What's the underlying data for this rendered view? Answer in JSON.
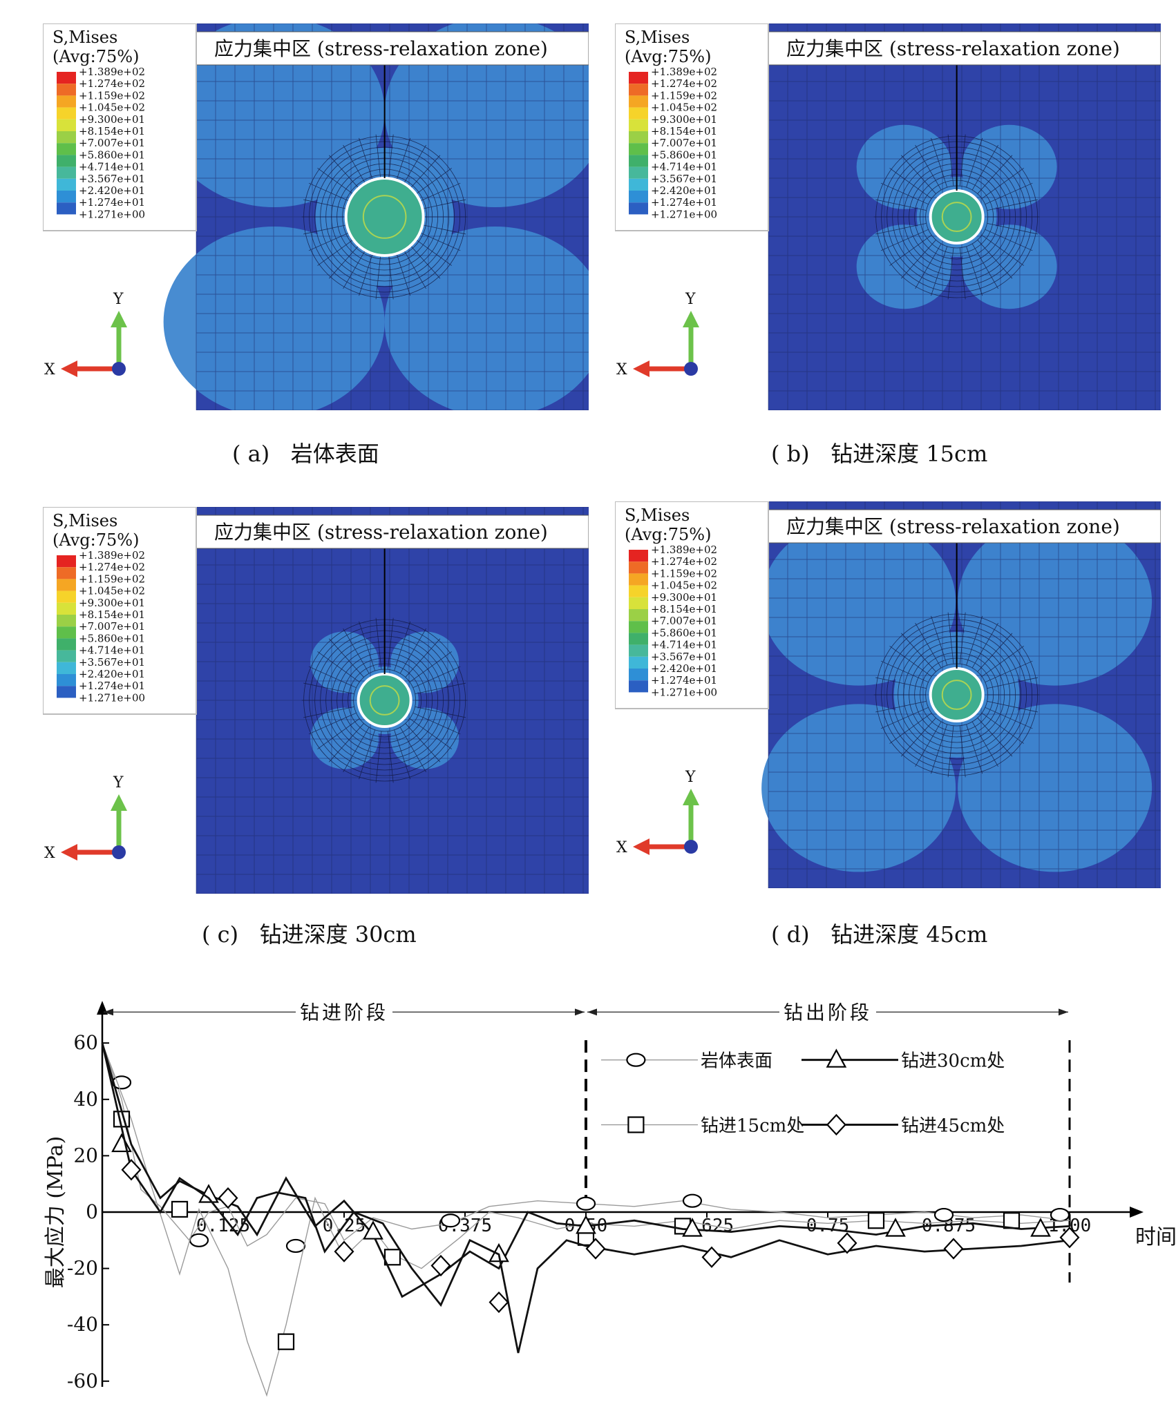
{
  "fem_panels": [
    {
      "id": "a",
      "legend_title": [
        "S,Mises",
        "(Avg:75%)"
      ],
      "legend_values": [
        "+1.389e+02",
        "+1.274e+02",
        "+1.159e+02",
        "+1.045e+02",
        "+9.300e+01",
        "+8.154e+01",
        "+7.007e+01",
        "+5.860e+01",
        "+4.714e+01",
        "+3.567e+01",
        "+2.420e+01",
        "+1.274e+01",
        "+1.271e+00"
      ],
      "banner": "应力集中区  (stress-relaxation zone)",
      "axis_x": "X",
      "axis_y": "Y",
      "caption": "( a)   岩体表面",
      "relaxation_extent": 1.0
    },
    {
      "id": "b",
      "legend_title": [
        "S,Mises",
        "(Avg:75%)"
      ],
      "legend_values": [
        "+1.389e+02",
        "+1.274e+02",
        "+1.159e+02",
        "+1.045e+02",
        "+9.300e+01",
        "+8.154e+01",
        "+7.007e+01",
        "+5.860e+01",
        "+4.714e+01",
        "+3.567e+01",
        "+2.420e+01",
        "+1.274e+01",
        "+1.271e+00"
      ],
      "banner": "应力集中区  (stress-relaxation zone)",
      "axis_x": "X",
      "axis_y": "Y",
      "caption": "( b)   钻进深度 15cm",
      "relaxation_extent": 0.3
    },
    {
      "id": "c",
      "legend_title": [
        "S,Mises",
        "(Avg:75%)"
      ],
      "legend_values": [
        "+1.389e+02",
        "+1.274e+02",
        "+1.159e+02",
        "+1.045e+02",
        "+9.300e+01",
        "+8.154e+01",
        "+7.007e+01",
        "+5.860e+01",
        "+4.714e+01",
        "+3.567e+01",
        "+2.420e+01",
        "+1.274e+01",
        "+1.271e+00"
      ],
      "banner": "应力集中区  (stress-relaxation zone)",
      "axis_x": "X",
      "axis_y": "Y",
      "caption": "( c)   钻进深度 30cm",
      "relaxation_extent": 0.15
    },
    {
      "id": "d",
      "legend_title": [
        "S,Mises",
        "(Avg:75%)"
      ],
      "legend_values": [
        "+1.389e+02",
        "+1.274e+02",
        "+1.159e+02",
        "+1.045e+02",
        "+9.300e+01",
        "+8.154e+01",
        "+7.007e+01",
        "+5.860e+01",
        "+4.714e+01",
        "+3.567e+01",
        "+2.420e+01",
        "+1.274e+01",
        "+1.271e+00"
      ],
      "banner": "应力集中区  (stress-relaxation zone)",
      "axis_x": "X",
      "axis_y": "Y",
      "caption": "( d)   钻进深度 45cm",
      "relaxation_extent": 0.85
    }
  ],
  "colors": {
    "background_blue": "#2f43a8",
    "relaxation_blue": "#3e86cf",
    "contour_scale": [
      "#e52421",
      "#ee6b26",
      "#f5a623",
      "#f6d32a",
      "#d8e23a",
      "#9bd046",
      "#5fbf4a",
      "#3fb06a",
      "#47b89b",
      "#3fb7d8",
      "#2e8fd6",
      "#2b5fc2",
      "#2a3aa4"
    ]
  },
  "chart_data": {
    "type": "line",
    "xlabel": "时间(s)",
    "ylabel": "最大应力 (MPa)",
    "x_ticks": [
      "0.125",
      "0.25",
      "0.375",
      "0.50",
      "0.625",
      "0.75",
      "0.875",
      "1.00"
    ],
    "x_tick_values": [
      0.125,
      0.25,
      0.375,
      0.5,
      0.625,
      0.75,
      0.875,
      1.0
    ],
    "y_ticks": [
      60,
      40,
      20,
      0,
      -20,
      -40,
      -60
    ],
    "xlim": [
      0,
      1.05
    ],
    "ylim": [
      -62,
      72
    ],
    "phase_divider_x": 0.5,
    "phase_end_x": 1.0,
    "phases": [
      "钻进阶段",
      "钻出阶段"
    ],
    "series": [
      {
        "name": "岩体表面",
        "marker": "ellipse",
        "line": "thin",
        "x": [
          0,
          0.02,
          0.04,
          0.06,
          0.09,
          0.11,
          0.13,
          0.15,
          0.17,
          0.2,
          0.23,
          0.25,
          0.28,
          0.32,
          0.36,
          0.4,
          0.45,
          0.5,
          0.55,
          0.6,
          0.65,
          0.7,
          0.75,
          0.8,
          0.85,
          0.9,
          0.95,
          1.0
        ],
        "y": [
          60,
          40,
          8,
          2,
          -10,
          0,
          2,
          -12,
          -8,
          5,
          3,
          -10,
          -2,
          -6,
          -4,
          2,
          4,
          3,
          2,
          4,
          1,
          0,
          -2,
          -1,
          0,
          -2,
          -1,
          -3
        ],
        "marker_x": [
          0.02,
          0.1,
          0.2,
          0.36,
          0.5,
          0.61,
          0.87,
          0.99
        ],
        "marker_y": [
          46,
          -10,
          -12,
          -3,
          3,
          4,
          -1,
          -1
        ]
      },
      {
        "name": "钻进15cm处",
        "marker": "square",
        "line": "thin",
        "x": [
          0,
          0.03,
          0.05,
          0.08,
          0.1,
          0.13,
          0.15,
          0.17,
          0.19,
          0.22,
          0.25,
          0.28,
          0.3,
          0.33,
          0.37,
          0.4,
          0.43,
          0.47,
          0.5,
          0.55,
          0.6,
          0.65,
          0.7,
          0.75,
          0.8,
          0.85,
          0.9,
          0.95,
          1.0
        ],
        "y": [
          60,
          33,
          10,
          -22,
          1,
          -20,
          -46,
          -65,
          -40,
          5,
          -16,
          -6,
          -15,
          -20,
          -9,
          0,
          -2,
          -6,
          -4,
          -5,
          -3,
          -6,
          -3,
          -4,
          -3,
          -4,
          -3,
          -4,
          -3
        ],
        "marker_x": [
          0.02,
          0.08,
          0.19,
          0.3,
          0.5,
          0.6,
          0.8,
          0.94
        ],
        "marker_y": [
          33,
          1,
          -46,
          -16,
          -9,
          -5,
          -3,
          -3
        ]
      },
      {
        "name": "钻进30cm处",
        "marker": "triangle",
        "line": "thick",
        "x": [
          0,
          0.03,
          0.06,
          0.08,
          0.11,
          0.14,
          0.16,
          0.19,
          0.22,
          0.25,
          0.28,
          0.31,
          0.35,
          0.38,
          0.41,
          0.44,
          0.47,
          0.5,
          0.55,
          0.6,
          0.65,
          0.7,
          0.75,
          0.8,
          0.85,
          0.9,
          0.95,
          1.0
        ],
        "y": [
          60,
          24,
          5,
          11,
          6,
          2,
          -8,
          12,
          -5,
          4,
          -8,
          -30,
          -22,
          -14,
          -20,
          0,
          -4,
          -5,
          -3,
          -6,
          -7,
          -5,
          -6,
          -8,
          -5,
          -4,
          -6,
          -5
        ],
        "marker_x": [
          0.02,
          0.11,
          0.28,
          0.41,
          0.5,
          0.61,
          0.82,
          0.97
        ],
        "marker_y": [
          24,
          6,
          -7,
          -15,
          -5,
          -6,
          -6,
          -6
        ]
      },
      {
        "name": "钻进45cm处",
        "marker": "diamond",
        "line": "thick",
        "x": [
          0,
          0.03,
          0.06,
          0.08,
          0.11,
          0.14,
          0.16,
          0.18,
          0.21,
          0.23,
          0.26,
          0.29,
          0.32,
          0.35,
          0.38,
          0.41,
          0.43,
          0.45,
          0.48,
          0.5,
          0.55,
          0.6,
          0.65,
          0.7,
          0.75,
          0.8,
          0.85,
          0.9,
          0.95,
          1.0
        ],
        "y": [
          60,
          15,
          0,
          12,
          5,
          -8,
          5,
          7,
          5,
          -14,
          0,
          -4,
          -20,
          -33,
          -10,
          -15,
          -50,
          -20,
          -10,
          -12,
          -15,
          -12,
          -16,
          -10,
          -15,
          -12,
          -14,
          -13,
          -12,
          -10
        ],
        "marker_x": [
          0.03,
          0.13,
          0.25,
          0.35,
          0.41,
          0.51,
          0.63,
          0.77,
          0.88,
          1.0
        ],
        "marker_y": [
          15,
          5,
          -14,
          -19,
          -32,
          -13,
          -16,
          -11,
          -13,
          -9
        ]
      }
    ],
    "legend": [
      {
        "label": "岩体表面",
        "marker": "ellipse"
      },
      {
        "label": "钻进30cm处",
        "marker": "triangle"
      },
      {
        "label": "钻进15cm处",
        "marker": "square"
      },
      {
        "label": "钻进45cm处",
        "marker": "diamond"
      }
    ]
  }
}
